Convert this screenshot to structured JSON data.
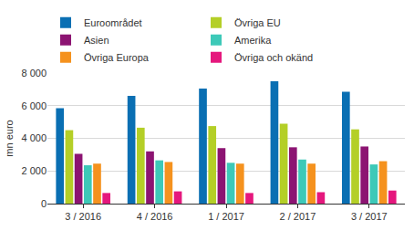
{
  "chart_data": {
    "type": "bar",
    "y_label": "mn euro",
    "categories": [
      "3 / 2016",
      "4 / 2016",
      "1 / 2017",
      "2 / 2017",
      "3 / 2017"
    ],
    "series": [
      {
        "name": "Euroområdet",
        "color": "#0a6fb3",
        "values": [
          5850,
          6600,
          7050,
          7500,
          6850
        ]
      },
      {
        "name": "Övriga EU",
        "color": "#b4cf27",
        "values": [
          4500,
          4650,
          4750,
          4900,
          4550
        ]
      },
      {
        "name": "Asien",
        "color": "#8c1472",
        "values": [
          3050,
          3200,
          3400,
          3450,
          3500
        ]
      },
      {
        "name": "Amerika",
        "color": "#3dc9b8",
        "values": [
          2350,
          2650,
          2500,
          2700,
          2400
        ]
      },
      {
        "name": "Övriga Europa",
        "color": "#f5921e",
        "values": [
          2450,
          2550,
          2450,
          2450,
          2600
        ]
      },
      {
        "name": "Övriga och okänd",
        "color": "#e5177d",
        "values": [
          650,
          750,
          650,
          700,
          800
        ]
      }
    ],
    "ylim": [
      0,
      8000
    ],
    "yticks": [
      0,
      {
        "value": 2000,
        "label": "2 000"
      },
      {
        "value": 4000,
        "label": "4 000"
      },
      {
        "value": 6000,
        "label": "6 000"
      },
      {
        "value": 8000,
        "label": "8 000"
      }
    ],
    "grid": true,
    "legend": "top"
  }
}
